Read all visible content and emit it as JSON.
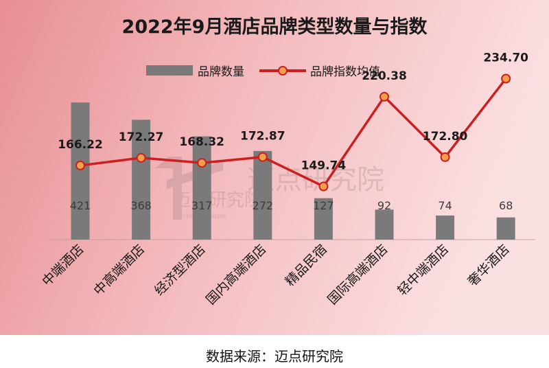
{
  "title": "2022年9月酒店品牌类型数量与指数",
  "source": "数据来源：迈点研究院",
  "watermark": {
    "main": "迈点研究院",
    "sub": "WEIXIN · MEADIN"
  },
  "colors": {
    "bar": "#7a7a7a",
    "line": "#cc1f1f",
    "marker_fill": "#f0a04a",
    "marker_stroke": "#cc1f1f",
    "background_left": "#e88f93",
    "background_right": "#fbe0e2"
  },
  "chart_data": {
    "type": "bar",
    "categories": [
      "中端酒店",
      "中高端酒店",
      "经济型酒店",
      "国内高端酒店",
      "精品民宿",
      "国际高端酒店",
      "轻中端酒店",
      "奢华酒店"
    ],
    "series": [
      {
        "name": "品牌数量",
        "type": "bar",
        "axis": "left",
        "values": [
          421,
          368,
          317,
          272,
          127,
          92,
          74,
          68
        ]
      },
      {
        "name": "品牌指数均值",
        "type": "line",
        "axis": "right",
        "values": [
          166.22,
          172.27,
          168.32,
          172.87,
          149.74,
          220.38,
          172.8,
          234.7
        ]
      }
    ],
    "bar_data_labels": [
      "421",
      "368",
      "317",
      "272",
      "127",
      "92",
      "74",
      "68"
    ],
    "line_data_labels": [
      "166.22",
      "172.27",
      "168.32",
      "172.87",
      "149.74",
      "220.38",
      "172.80",
      "234.70"
    ],
    "legend_position": "top-center",
    "grid": false
  }
}
